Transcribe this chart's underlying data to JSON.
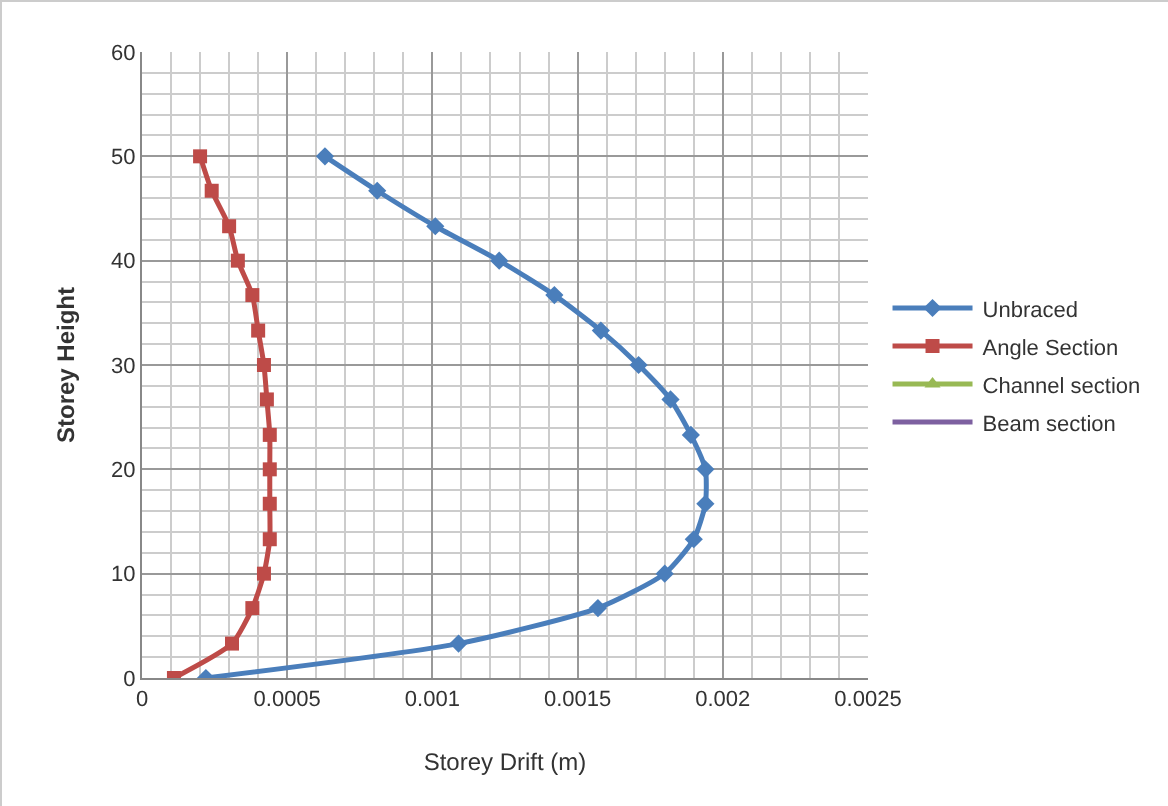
{
  "chart_data": {
    "type": "line",
    "xlabel": "Storey Drift (m)",
    "ylabel": "Storey Height",
    "xlim": [
      0,
      0.0025
    ],
    "xticks": [
      0,
      0.0005,
      0.001,
      0.0015,
      0.002,
      0.0025
    ],
    "ylim": [
      0,
      60
    ],
    "yticks": [
      0,
      10,
      20,
      30,
      40,
      50,
      60
    ],
    "grid": true,
    "legend": "right",
    "series": [
      {
        "name": "Unbraced",
        "color": "#4a7ebb",
        "marker": "diamond",
        "x": [
          0.00022,
          0.00109,
          0.00157,
          0.0018,
          0.0019,
          0.00194,
          0.00194,
          0.00189,
          0.00182,
          0.00171,
          0.00158,
          0.00142,
          0.00123,
          0.00101,
          0.00081,
          0.00063
        ],
        "values": [
          0,
          3.3,
          6.7,
          10,
          13.3,
          16.7,
          20,
          23.3,
          26.7,
          30,
          33.3,
          36.7,
          40,
          43.3,
          46.7,
          50
        ]
      },
      {
        "name": "Angle Section",
        "color": "#be4b48",
        "marker": "square",
        "x": [
          0.00011,
          0.00031,
          0.00038,
          0.00042,
          0.00044,
          0.00044,
          0.00044,
          0.00044,
          0.00043,
          0.00042,
          0.0004,
          0.00038,
          0.00033,
          0.0003,
          0.00024,
          0.0002
        ],
        "values": [
          0,
          3.3,
          6.7,
          10,
          13.3,
          16.7,
          20,
          23.3,
          26.7,
          30,
          33.3,
          36.7,
          40,
          43.3,
          46.7,
          50
        ]
      },
      {
        "name": "Channel section",
        "color": "#98b954",
        "marker": "triangle",
        "values": [
          null
        ]
      },
      {
        "name": "Beam section",
        "color": "#7d60a0",
        "marker": "none",
        "values": [
          null
        ]
      }
    ]
  }
}
